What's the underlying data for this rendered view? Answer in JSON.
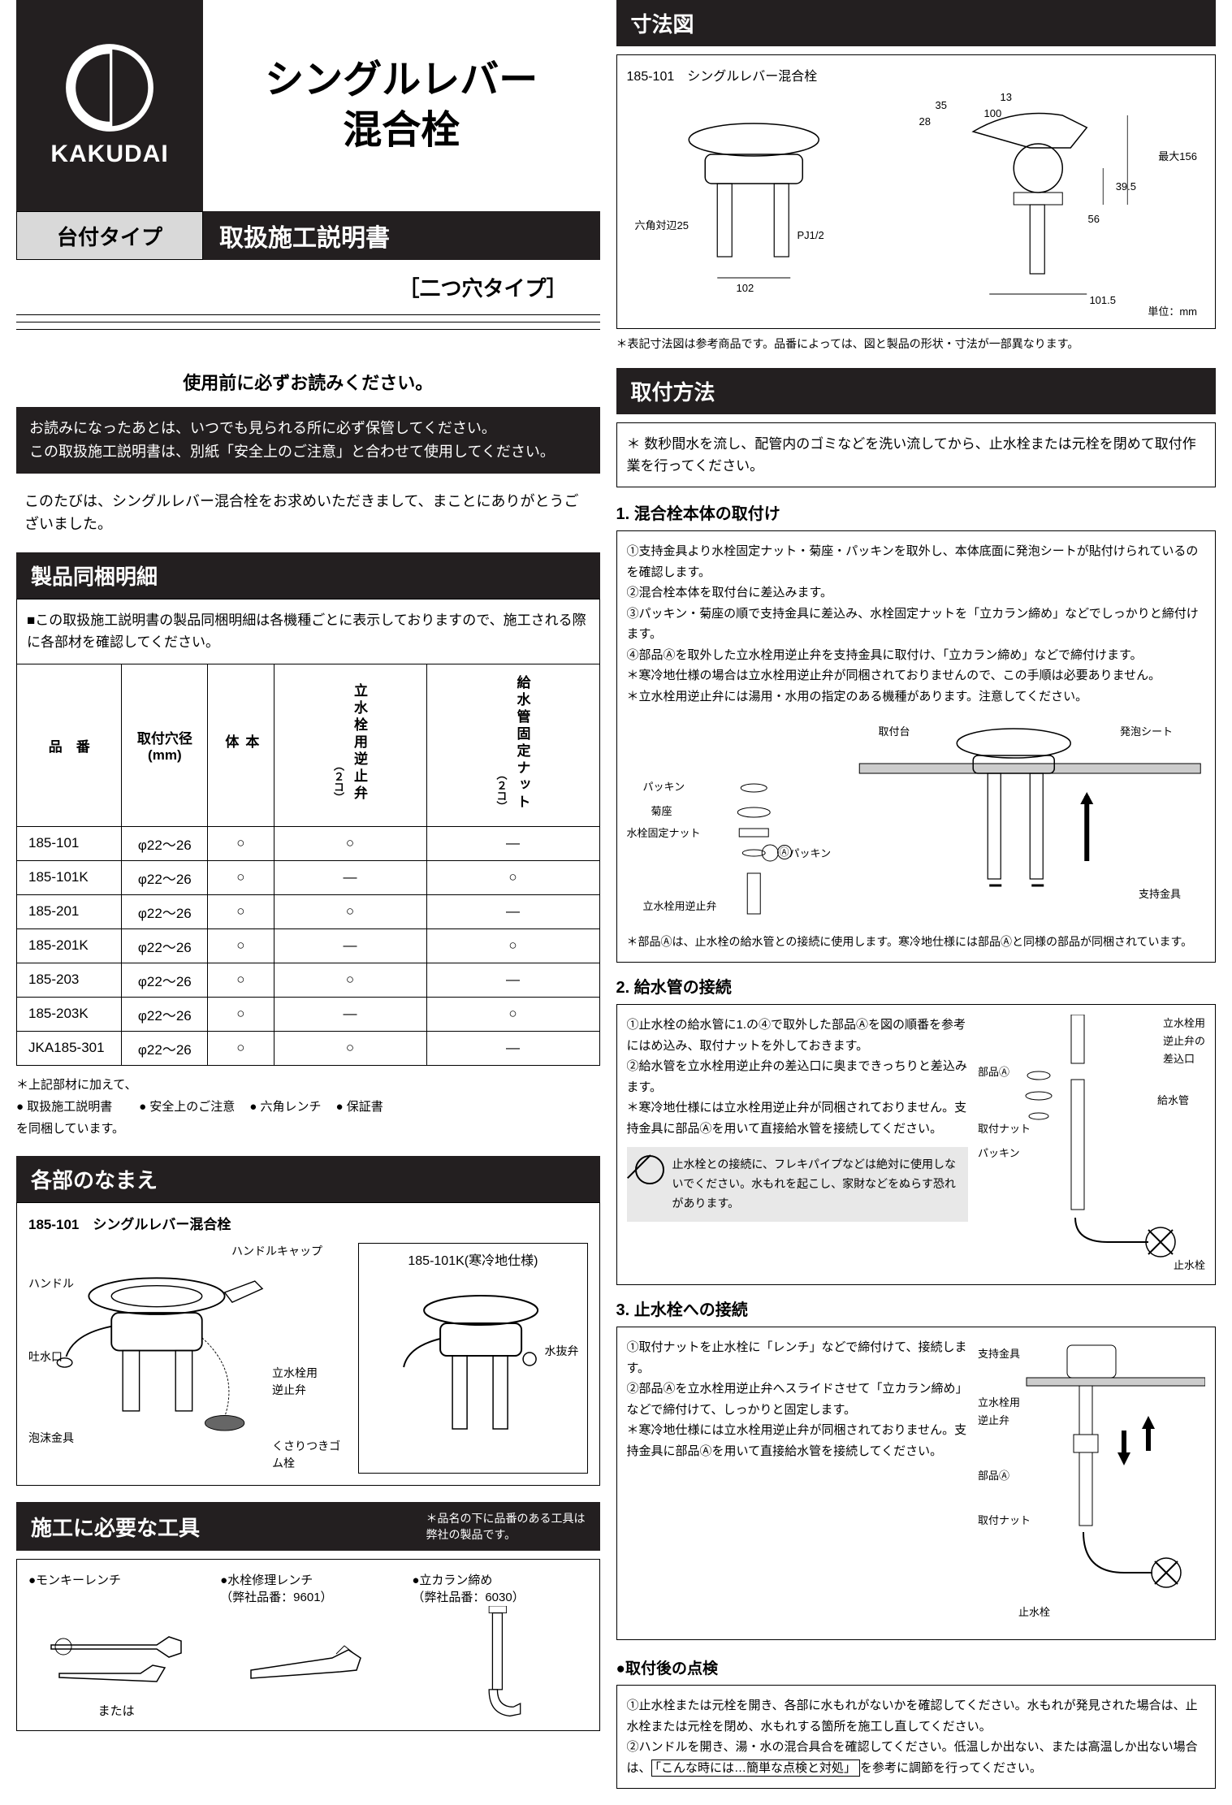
{
  "brand": "KAKUDAI",
  "main_title_l1": "シングルレバー",
  "main_title_l2": "混合栓",
  "type_label": "台付タイプ",
  "manual_title": "取扱施工説明書",
  "subtype": "［二つ穴タイプ］",
  "read_before": "使用前に必ずお読みください。",
  "black_note_l1": "お読みになったあとは、いつでも見られる所に必ず保管してください。",
  "black_note_l2": "この取扱施工説明書は、別紙「安全上のご注意」と合わせて使用してください。",
  "thanks": "このたびは、シングルレバー混合栓をお求めいただきまして、まことにありがとうございました。",
  "parts_header": "製品同梱明細",
  "parts_note": "■この取扱施工説明書の製品同梱明細は各機種ごとに表示しておりますので、施工される際に各部材を確認してください。",
  "parts_table": {
    "columns": {
      "model": "品　番",
      "hole": "取付穴径\n(mm)",
      "body": "本\n体",
      "check_valve": "立水栓用逆止弁",
      "check_valve_sub": "（２コ）",
      "nut": "給水管固定ナット",
      "nut_sub": "（２コ）"
    },
    "rows": [
      {
        "model": "185-101",
        "hole": "φ22～26",
        "body": "○",
        "cv": "○",
        "nut": "—"
      },
      {
        "model": "185-101K",
        "hole": "φ22～26",
        "body": "○",
        "cv": "—",
        "nut": "○"
      },
      {
        "model": "185-201",
        "hole": "φ22～26",
        "body": "○",
        "cv": "○",
        "nut": "—"
      },
      {
        "model": "185-201K",
        "hole": "φ22～26",
        "body": "○",
        "cv": "—",
        "nut": "○"
      },
      {
        "model": "185-203",
        "hole": "φ22～26",
        "body": "○",
        "cv": "○",
        "nut": "—"
      },
      {
        "model": "185-203K",
        "hole": "φ22～26",
        "body": "○",
        "cv": "—",
        "nut": "○"
      },
      {
        "model": "JKA185-301",
        "hole": "φ22～26",
        "body": "○",
        "cv": "○",
        "nut": "—"
      }
    ],
    "foot_prefix": "＊上記部材に加えて、",
    "foot_items": [
      "● 取扱施工説明書\nを同梱しています。",
      "● 安全上のご注意",
      "● 六角レンチ",
      "● 保証書"
    ]
  },
  "names_header": "各部のなまえ",
  "names_model": "185-101　シングルレバー混合栓",
  "names_cold_model": "185-101K(寒冷地仕様)",
  "names_labels": {
    "handle": "ハンドル",
    "handle_cap": "ハンドルキャップ",
    "spout": "吐水口",
    "aerator": "泡沫金具",
    "check_valve": "立水栓用\n逆止弁",
    "drain_valve": "水抜弁",
    "rubber_plug": "くさりつきゴム栓"
  },
  "tools_header": "施工に必要な工具",
  "tools_note": "＊品名の下に品番のある工具は\n弊社の製品です。",
  "tools": {
    "wrench": "●モンキーレンチ",
    "or": "または",
    "repair_wrench": "●水栓修理レンチ\n（弊社品番：9601）",
    "tighten": "●立カラン締め\n（弊社品番：6030）"
  },
  "dim_header": "寸法図",
  "dim_model": "185-101　シングルレバー混合栓",
  "dim_values": {
    "hex": "六角対辺25",
    "pj": "PJ1/2",
    "w102": "102",
    "a35": "35",
    "a28": "28",
    "a13": "13",
    "a100": "100",
    "max156": "最大156",
    "h395": "39.5",
    "h56": "56",
    "w1015": "101.5",
    "unit": "単位：mm"
  },
  "dim_note": "＊表記寸法図は参考商品です。品番によっては、図と製品の形状・寸法が一部異なります。",
  "install_header": "取付方法",
  "flush_note": "＊ 数秒間水を流し、配管内のゴミなどを洗い流してから、止水栓または元栓を閉めて取付作業を行ってください。",
  "step1": {
    "title": "1. 混合栓本体の取付け",
    "lines": [
      "①支持金具より水栓固定ナット・菊座・パッキンを取外し、本体底面に発泡シートが貼付けられているのを確認します。",
      "②混合栓本体を取付台に差込みます。",
      "③パッキン・菊座の順で支持金具に差込み、水栓固定ナットを「立カラン締め」などでしっかりと締付けます。",
      "④部品Ⓐを取外した立水栓用逆止弁を支持金具に取付け、「立カラン締め」などで締付けます。",
      "＊寒冷地仕様の場合は立水栓用逆止弁が同梱されておりませんので、この手順は必要ありません。",
      "＊立水栓用逆止弁には湯用・水用の指定のある機種があります。注意してください。"
    ],
    "labels": {
      "mount": "取付台",
      "foam": "発泡シート",
      "packing": "パッキン",
      "kiku": "菊座",
      "nut": "水栓固定ナット",
      "packing2": "パッキン",
      "a": "Ⓐ",
      "cv": "立水栓用逆止弁",
      "support": "支持金具"
    },
    "note_a": "＊部品Ⓐは、止水栓の給水管との接続に使用します。寒冷地仕様には部品Ⓐと同様の部品が同梱されています。"
  },
  "step2": {
    "title": "2. 給水管の接続",
    "lines": [
      "①止水栓の給水管に1.の④で取外した部品Ⓐを図の順番を参考にはめ込み、取付ナットを外しておきます。",
      "②給水管を立水栓用逆止弁の差込口に奥まできっちりと差込みます。",
      "＊寒冷地仕様には立水栓用逆止弁が同梱されておりません。支持金具に部品Ⓐを用いて直接給水管を接続してください。"
    ],
    "labels": {
      "partA": "部品Ⓐ",
      "insert": "立水栓用\n逆止弁の\n差込口",
      "pipe": "給水管",
      "nut": "取付ナット",
      "packing": "パッキン",
      "stop": "止水栓"
    },
    "warn": "止水栓との接続に、フレキパイプなどは絶対に使用しないでください。水もれを起こし、家財などをぬらす恐れがあります。"
  },
  "step3": {
    "title": "3. 止水栓への接続",
    "lines": [
      "①取付ナットを止水栓に「レンチ」などで締付けて、接続します。",
      "②部品Ⓐを立水栓用逆止弁へスライドさせて「立カラン締め」などで締付けて、しっかりと固定します。",
      "＊寒冷地仕様には立水栓用逆止弁が同梱されておりません。支持金具に部品Ⓐを用いて直接給水管を接続してください。"
    ],
    "labels": {
      "support": "支持金具",
      "cv": "立水栓用\n逆止弁",
      "partA": "部品Ⓐ",
      "nut": "取付ナット",
      "stop": "止水栓"
    }
  },
  "check": {
    "title": "●取付後の点検",
    "lines": [
      "①止水栓または元栓を開き、各部に水もれがないかを確認してください。水もれが発見された場合は、止水栓または元栓を閉め、水もれする箇所を施工し直してください。",
      "②ハンドルを開き、湯・水の混合具合を確認してください。低温しか出ない、または高温しか出ない場合は、"
    ],
    "boxed": "「こんな時には…簡単な点検と対処」",
    "tail": "を参考に調節を行ってください。"
  }
}
